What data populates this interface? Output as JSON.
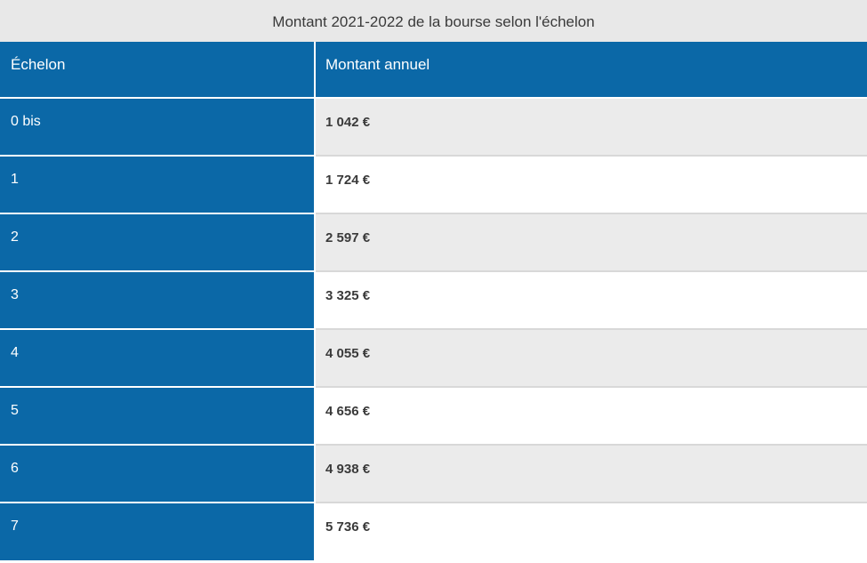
{
  "table": {
    "caption": "Montant 2021-2022 de la bourse selon l'échelon",
    "headers": [
      "Échelon",
      "Montant annuel"
    ],
    "rows": [
      {
        "echelon": "0 bis",
        "montant": "1 042 €"
      },
      {
        "echelon": "1",
        "montant": "1 724 €"
      },
      {
        "echelon": "2",
        "montant": "2 597 €"
      },
      {
        "echelon": "3",
        "montant": "3 325 €"
      },
      {
        "echelon": "4",
        "montant": "4 055 €"
      },
      {
        "echelon": "5",
        "montant": "4 656 €"
      },
      {
        "echelon": "6",
        "montant": "4 938 €"
      },
      {
        "echelon": "7",
        "montant": "5 736 €"
      }
    ]
  },
  "colors": {
    "header_blue": "#0b68a7",
    "caption_bg": "#e8e8e8",
    "stripe_gray": "#ebebeb",
    "text_dark": "#3a3a3a"
  }
}
